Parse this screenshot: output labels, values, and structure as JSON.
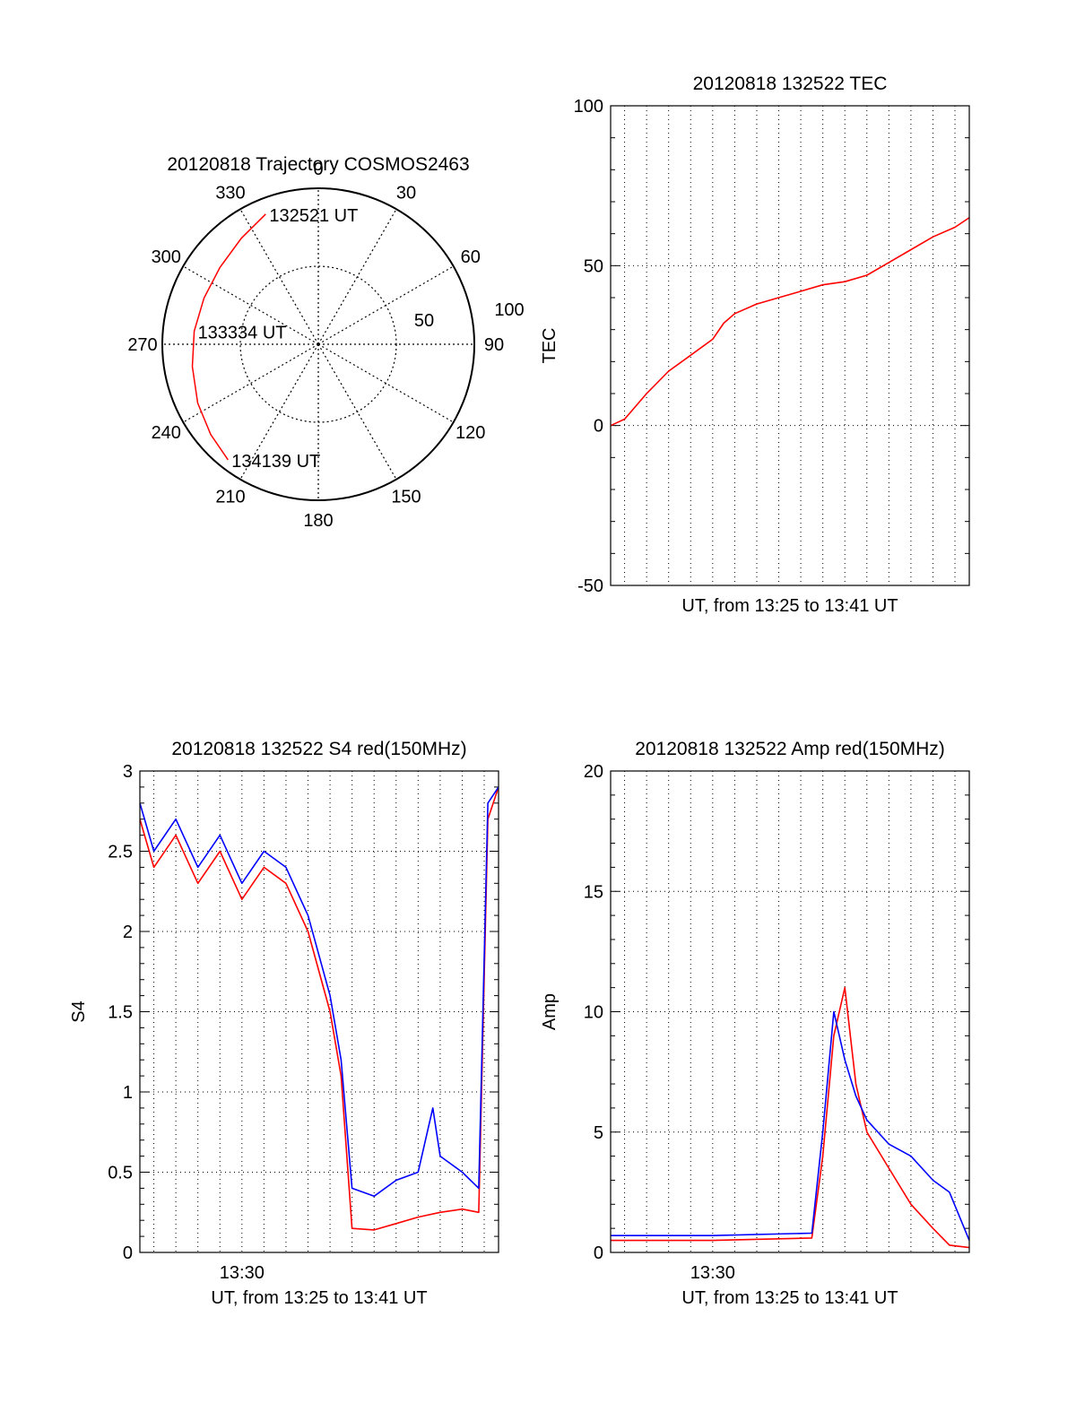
{
  "colors": {
    "red": "#ff0000",
    "blue": "#0000ff",
    "axis": "#000000",
    "grid": "#000000",
    "background": "#ffffff"
  },
  "chart_data": [
    {
      "id": "trajectory",
      "type": "polar",
      "title": "20120818 Trajectory COSMOS2463",
      "azimuth_ticks": [
        "0",
        "30",
        "60",
        "90",
        "120",
        "150",
        "180",
        "210",
        "240",
        "270",
        "300",
        "330"
      ],
      "radial_ticks": [
        "50",
        "100"
      ],
      "rlim": [
        0,
        100
      ],
      "grid": true,
      "series": [
        {
          "color": "red",
          "points": [
            {
              "az": 338,
              "r": 90
            },
            {
              "az": 324,
              "r": 84
            },
            {
              "az": 308,
              "r": 80
            },
            {
              "az": 292,
              "r": 79
            },
            {
              "az": 276,
              "r": 80
            },
            {
              "az": 260,
              "r": 82
            },
            {
              "az": 244,
              "r": 86
            },
            {
              "az": 230,
              "r": 90
            },
            {
              "az": 218,
              "r": 94
            }
          ]
        }
      ],
      "annotations": [
        {
          "text": "132521 UT",
          "az": 338,
          "r": 90
        },
        {
          "text": "133334 UT",
          "az": 276,
          "r": 80
        },
        {
          "text": "134139 UT",
          "az": 218,
          "r": 94
        }
      ]
    },
    {
      "id": "tec",
      "type": "line",
      "title": "20120818 132522 TEC",
      "xlabel": "UT, from 13:25 to 13:41 UT",
      "ylabel": "TEC",
      "xlim": [
        "13:25:22",
        "13:41:39"
      ],
      "ylim": [
        -50,
        100
      ],
      "yticks": [
        -50,
        0,
        50,
        100
      ],
      "grid": true,
      "series": [
        {
          "color": "red",
          "x": [
            "13:25:22",
            "13:26:00",
            "13:27:00",
            "13:28:00",
            "13:29:00",
            "13:30:00",
            "13:30:30",
            "13:31:00",
            "13:32:00",
            "13:33:00",
            "13:34:00",
            "13:35:00",
            "13:36:00",
            "13:37:00",
            "13:38:00",
            "13:39:00",
            "13:40:00",
            "13:41:00",
            "13:41:39"
          ],
          "y": [
            0,
            2,
            10,
            17,
            22,
            27,
            32,
            35,
            38,
            40,
            42,
            44,
            45,
            47,
            51,
            55,
            59,
            62,
            65
          ]
        }
      ]
    },
    {
      "id": "s4",
      "type": "line",
      "title": "20120818 132522 S4 red(150MHz)",
      "xlabel": "UT, from 13:25 to 13:41 UT",
      "ylabel": "S4",
      "xlim": [
        "13:25:22",
        "13:41:39"
      ],
      "ylim": [
        0,
        3
      ],
      "yticks": [
        "0",
        "0.5",
        "1",
        "1.5",
        "2",
        "2.5",
        "3"
      ],
      "xticks": [
        "13:30"
      ],
      "grid": true,
      "series": [
        {
          "color": "red",
          "x": [
            "13:25:22",
            "13:26:00",
            "13:27:00",
            "13:28:00",
            "13:29:00",
            "13:30:00",
            "13:31:00",
            "13:32:00",
            "13:33:00",
            "13:34:00",
            "13:34:30",
            "13:35:00",
            "13:36:00",
            "13:37:00",
            "13:38:00",
            "13:39:00",
            "13:40:00",
            "13:40:45",
            "13:41:10",
            "13:41:39"
          ],
          "y": [
            2.7,
            2.4,
            2.6,
            2.3,
            2.5,
            2.2,
            2.4,
            2.3,
            2.0,
            1.5,
            1.1,
            0.15,
            0.14,
            0.18,
            0.22,
            0.25,
            0.27,
            0.25,
            2.7,
            2.9
          ]
        },
        {
          "color": "blue",
          "x": [
            "13:25:22",
            "13:26:00",
            "13:27:00",
            "13:28:00",
            "13:29:00",
            "13:30:00",
            "13:31:00",
            "13:32:00",
            "13:33:00",
            "13:34:00",
            "13:34:30",
            "13:35:00",
            "13:36:00",
            "13:37:00",
            "13:38:00",
            "13:38:40",
            "13:39:00",
            "13:40:00",
            "13:40:45",
            "13:41:10",
            "13:41:39"
          ],
          "y": [
            2.8,
            2.5,
            2.7,
            2.4,
            2.6,
            2.3,
            2.5,
            2.4,
            2.1,
            1.6,
            1.2,
            0.4,
            0.35,
            0.45,
            0.5,
            0.9,
            0.6,
            0.5,
            0.4,
            2.8,
            2.9
          ]
        }
      ]
    },
    {
      "id": "amp",
      "type": "line",
      "title": "20120818 132522 Amp red(150MHz)",
      "xlabel": "UT, from 13:25 to 13:41 UT",
      "ylabel": "Amp",
      "xlim": [
        "13:25:22",
        "13:41:39"
      ],
      "ylim": [
        0,
        20
      ],
      "yticks": [
        0,
        5,
        10,
        15,
        20
      ],
      "xticks": [
        "13:30"
      ],
      "grid": true,
      "series": [
        {
          "color": "red",
          "x": [
            "13:25:22",
            "13:30:00",
            "13:34:30",
            "13:35:00",
            "13:35:30",
            "13:36:00",
            "13:36:30",
            "13:37:00",
            "13:38:00",
            "13:39:00",
            "13:40:00",
            "13:40:45",
            "13:41:39"
          ],
          "y": [
            0.5,
            0.5,
            0.6,
            4.0,
            9.0,
            11.0,
            7.0,
            5.0,
            3.5,
            2.0,
            1.0,
            0.3,
            0.2
          ]
        },
        {
          "color": "blue",
          "x": [
            "13:25:22",
            "13:30:00",
            "13:34:30",
            "13:35:00",
            "13:35:30",
            "13:36:00",
            "13:36:30",
            "13:37:00",
            "13:38:00",
            "13:39:00",
            "13:40:00",
            "13:40:45",
            "13:41:39"
          ],
          "y": [
            0.7,
            0.7,
            0.8,
            5.0,
            10.0,
            8.0,
            6.5,
            5.5,
            4.5,
            4.0,
            3.0,
            2.5,
            0.5
          ]
        }
      ]
    }
  ]
}
